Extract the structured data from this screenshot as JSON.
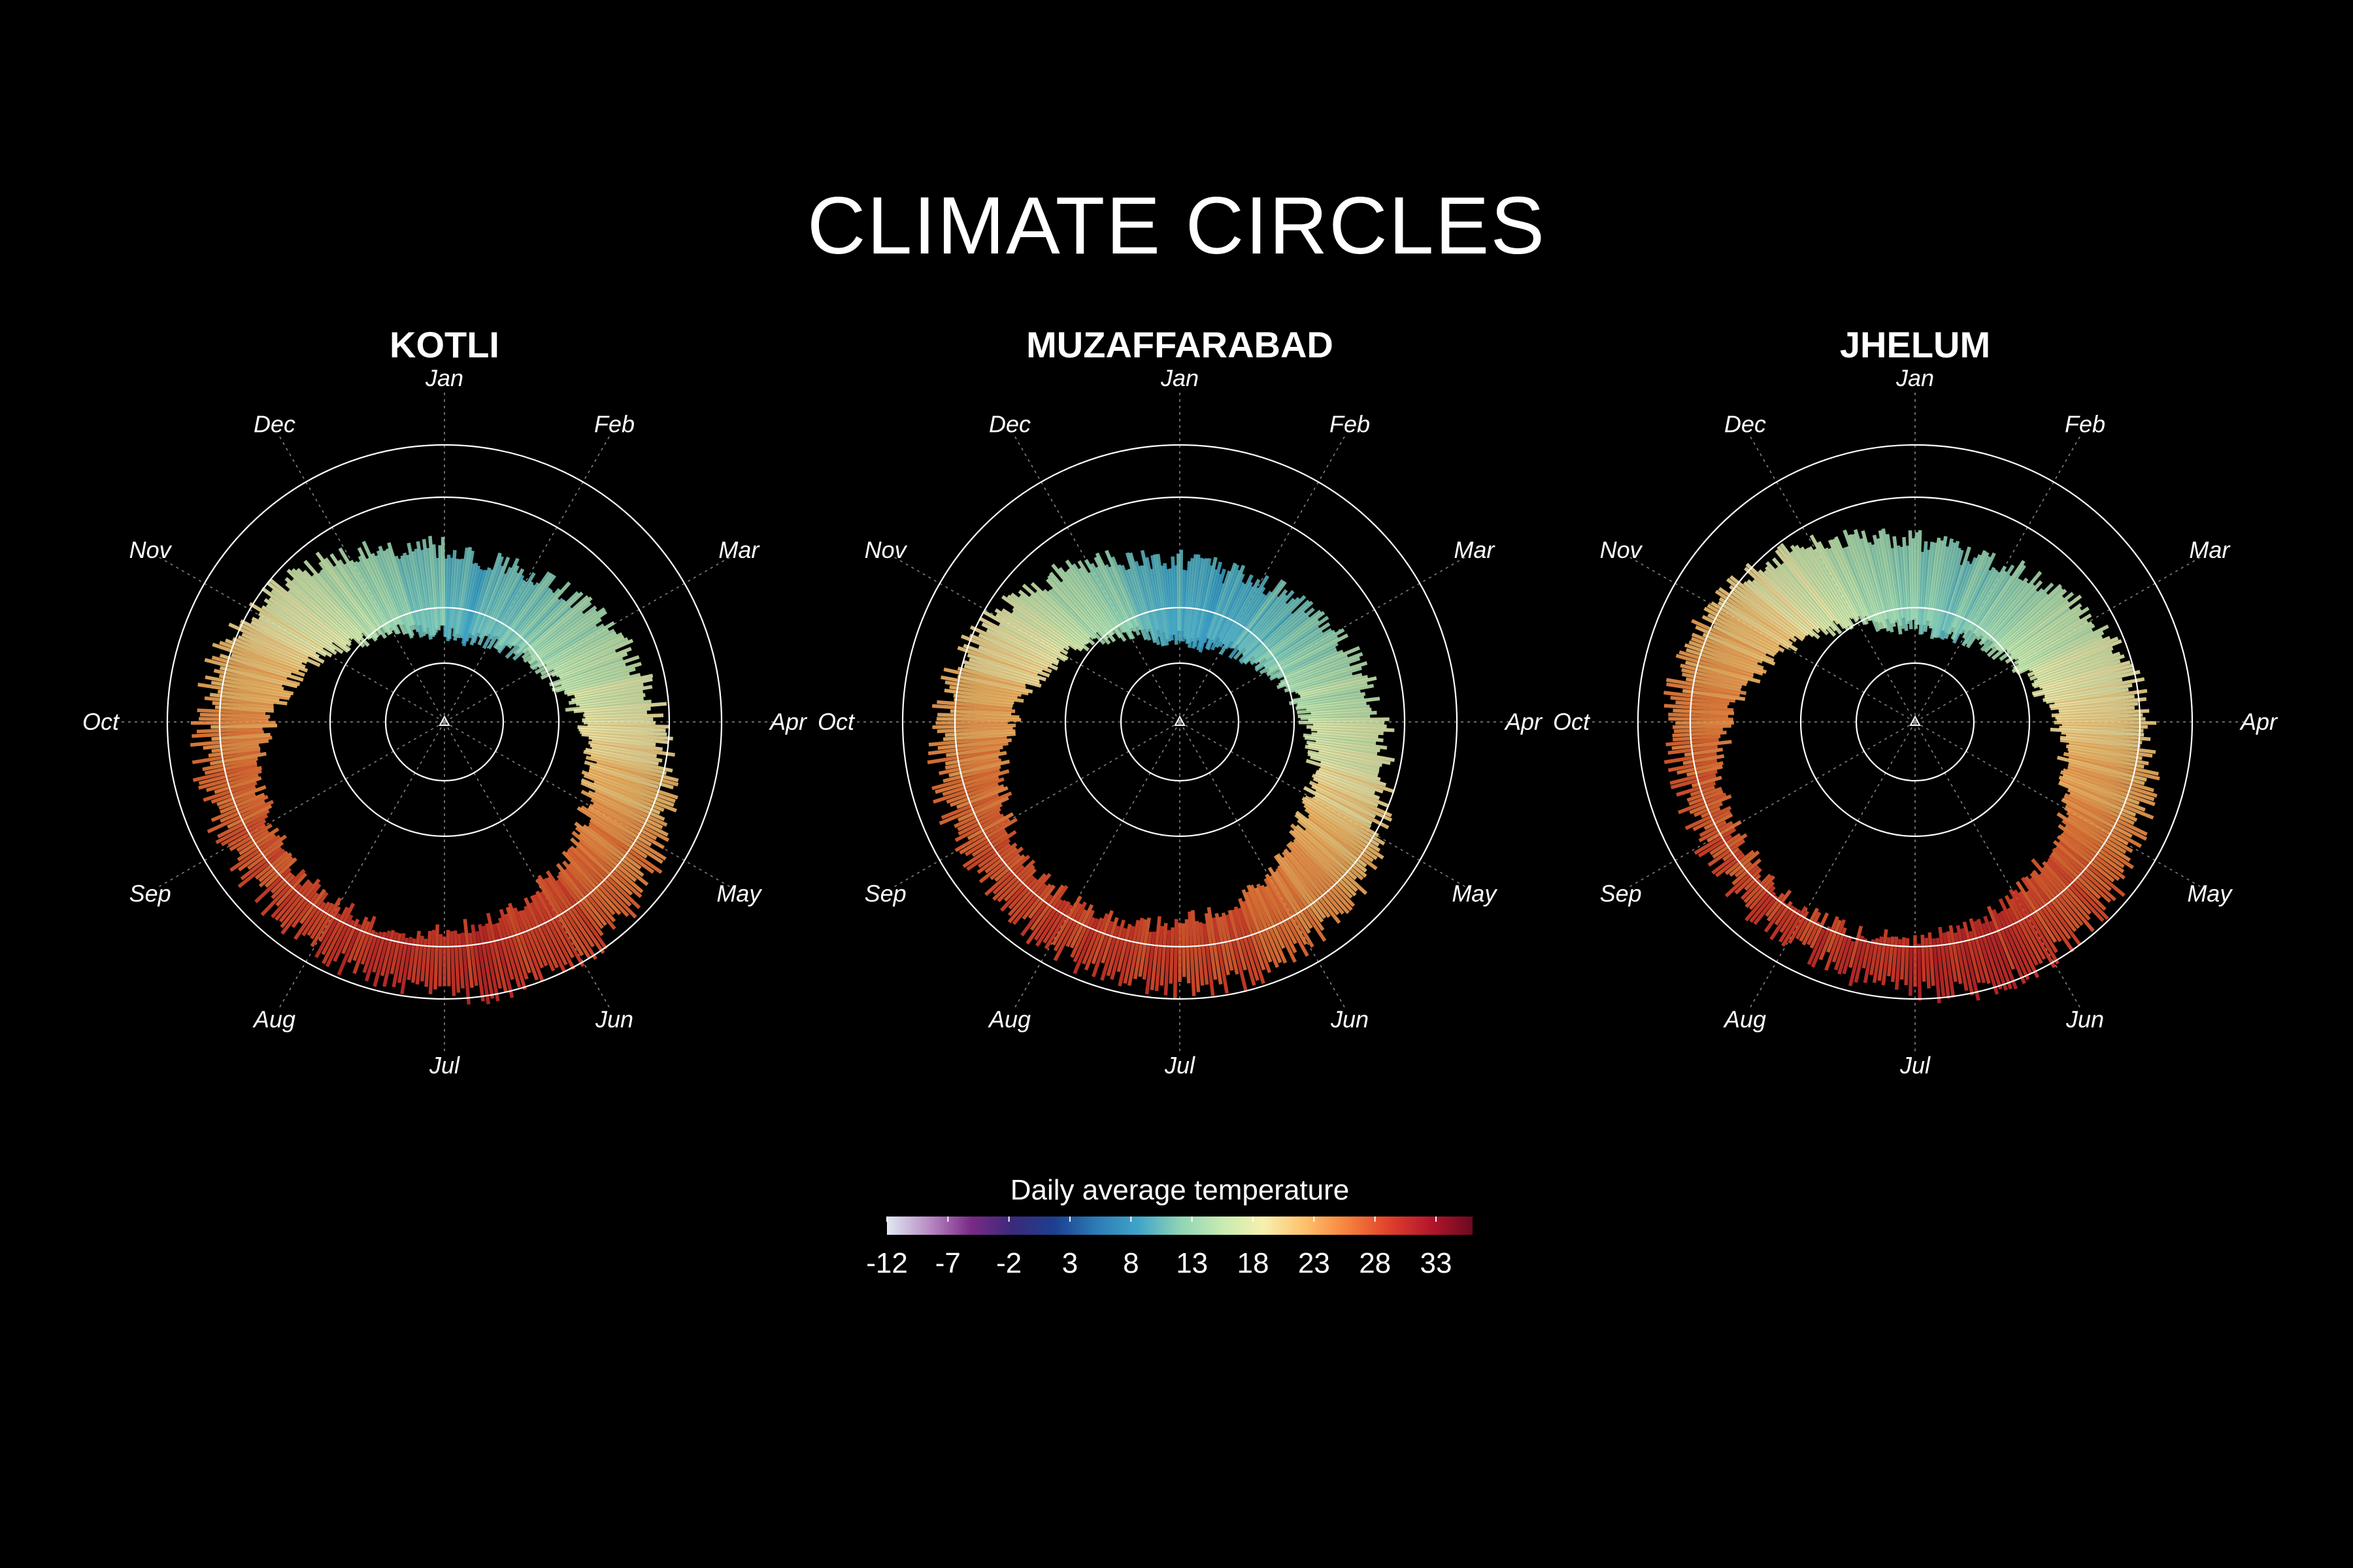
{
  "page": {
    "title": "CLIMATE CIRCLES"
  },
  "colors": {
    "background": "#000000",
    "colorbar_stops": [
      "#dfeaf3",
      "#b98cc4",
      "#7a2a86",
      "#3b2a7a",
      "#1d3f8f",
      "#2c7bb6",
      "#3fa4c8",
      "#8fd3b5",
      "#c6ebb2",
      "#f7f0ae",
      "#fdc06b",
      "#f6823d",
      "#e0402b",
      "#b3162c",
      "#6a0a1f"
    ]
  },
  "months": [
    "Jan",
    "Feb",
    "Mar",
    "Apr",
    "May",
    "Jun",
    "Jul",
    "Aug",
    "Sep",
    "Oct",
    "Nov",
    "Dec"
  ],
  "chart_data": [
    {
      "type": "polar-bar",
      "title": "KOTLI",
      "theta_unit": "day of year",
      "r_range": [
        -12,
        36
      ],
      "monthly_profile": {
        "months": [
          "Jan",
          "Feb",
          "Mar",
          "Apr",
          "May",
          "Jun",
          "Jul",
          "Aug",
          "Sep",
          "Oct",
          "Nov",
          "Dec"
        ],
        "low": [
          3,
          5,
          9,
          14,
          19,
          23,
          25,
          24,
          21,
          15,
          8,
          4
        ],
        "high": [
          17,
          19,
          23,
          28,
          34,
          36,
          34,
          32,
          31,
          29,
          24,
          19
        ]
      }
    },
    {
      "type": "polar-bar",
      "title": "MUZAFFARABAD",
      "theta_unit": "day of year",
      "r_range": [
        -12,
        36
      ],
      "monthly_profile": {
        "months": [
          "Jan",
          "Feb",
          "Mar",
          "Apr",
          "May",
          "Jun",
          "Jul",
          "Aug",
          "Sep",
          "Oct",
          "Nov",
          "Dec"
        ],
        "low": [
          2,
          4,
          8,
          12,
          16,
          21,
          24,
          24,
          20,
          14,
          8,
          3
        ],
        "high": [
          15,
          17,
          21,
          25,
          31,
          34,
          34,
          32,
          31,
          28,
          22,
          17
        ]
      }
    },
    {
      "type": "polar-bar",
      "title": "JHELUM",
      "theta_unit": "day of year",
      "r_range": [
        -12,
        36
      ],
      "monthly_profile": {
        "months": [
          "Jan",
          "Feb",
          "Mar",
          "Apr",
          "May",
          "Jun",
          "Jul",
          "Aug",
          "Sep",
          "Oct",
          "Nov",
          "Dec"
        ],
        "low": [
          4,
          6,
          10,
          15,
          20,
          25,
          26,
          25,
          23,
          17,
          10,
          5
        ],
        "high": [
          18,
          21,
          26,
          30,
          34,
          36,
          33,
          31,
          30,
          30,
          26,
          21
        ]
      }
    }
  ],
  "colorbar": {
    "title": "Daily average temperature",
    "range": [
      -12,
      36
    ],
    "ticks": [
      "-12",
      "-7",
      "-2",
      "3",
      "8",
      "13",
      "18",
      "23",
      "28",
      "33"
    ]
  }
}
